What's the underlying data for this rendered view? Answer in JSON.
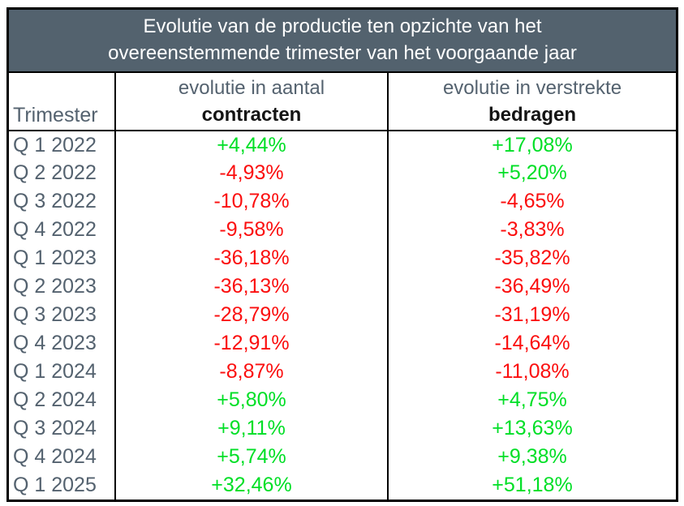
{
  "title": {
    "line1": "Evolutie van de productie ten opzichte van het",
    "line2": "overeenstemmende trimester van het voorgaande jaar"
  },
  "header": {
    "trimester_label": "Trimester",
    "contracts_sub": "evolutie in aantal",
    "contracts_main": "contracten",
    "amounts_sub": "evolutie in verstrekte",
    "amounts_main": "bedragen"
  },
  "rows": [
    {
      "quarter": "Q 1 2022",
      "contracts": "+4,44%",
      "contracts_trend": "positive",
      "amounts": "+17,08%",
      "amounts_trend": "positive"
    },
    {
      "quarter": "Q 2 2022",
      "contracts": "-4,93%",
      "contracts_trend": "negative",
      "amounts": "+5,20%",
      "amounts_trend": "positive"
    },
    {
      "quarter": "Q 3 2022",
      "contracts": "-10,78%",
      "contracts_trend": "negative",
      "amounts": "-4,65%",
      "amounts_trend": "negative"
    },
    {
      "quarter": "Q 4 2022",
      "contracts": "-9,58%",
      "contracts_trend": "negative",
      "amounts": "-3,83%",
      "amounts_trend": "negative"
    },
    {
      "quarter": "Q 1 2023",
      "contracts": "-36,18%",
      "contracts_trend": "negative",
      "amounts": "-35,82%",
      "amounts_trend": "negative"
    },
    {
      "quarter": "Q 2 2023",
      "contracts": "-36,13%",
      "contracts_trend": "negative",
      "amounts": "-36,49%",
      "amounts_trend": "negative"
    },
    {
      "quarter": "Q 3 2023",
      "contracts": "-28,79%",
      "contracts_trend": "negative",
      "amounts": "-31,19%",
      "amounts_trend": "negative"
    },
    {
      "quarter": "Q 4 2023",
      "contracts": "-12,91%",
      "contracts_trend": "negative",
      "amounts": "-14,64%",
      "amounts_trend": "negative"
    },
    {
      "quarter": "Q 1 2024",
      "contracts": "-8,87%",
      "contracts_trend": "negative",
      "amounts": "-11,08%",
      "amounts_trend": "negative"
    },
    {
      "quarter": "Q 2 2024",
      "contracts": "+5,80%",
      "contracts_trend": "positive",
      "amounts": "+4,75%",
      "amounts_trend": "positive"
    },
    {
      "quarter": "Q 3 2024",
      "contracts": "+9,11%",
      "contracts_trend": "positive",
      "amounts": "+13,63%",
      "amounts_trend": "positive"
    },
    {
      "quarter": "Q 4 2024",
      "contracts": "+5,74%",
      "contracts_trend": "positive",
      "amounts": "+9,38%",
      "amounts_trend": "positive"
    },
    {
      "quarter": "Q 1 2025",
      "contracts": "+32,46%",
      "contracts_trend": "positive",
      "amounts": "+51,18%",
      "amounts_trend": "positive"
    }
  ],
  "colors": {
    "positive": "#00DF26",
    "negative": "#FB0E0E",
    "header_band_bg": "#53626E",
    "slate_text": "#54626F",
    "border": "#000000"
  },
  "chart_data": {
    "type": "table",
    "title": "Evolutie van de productie ten opzichte van het overeenstemmende trimester van het voorgaande jaar",
    "columns": [
      "Trimester",
      "evolutie in aantal contracten",
      "evolutie in verstrekte bedragen"
    ],
    "categories": [
      "Q 1 2022",
      "Q 2 2022",
      "Q 3 2022",
      "Q 4 2022",
      "Q 1 2023",
      "Q 2 2023",
      "Q 3 2023",
      "Q 4 2023",
      "Q 1 2024",
      "Q 2 2024",
      "Q 3 2024",
      "Q 4 2024",
      "Q 1 2025"
    ],
    "series": [
      {
        "name": "evolutie in aantal contracten",
        "unit": "%",
        "values": [
          4.44,
          -4.93,
          -10.78,
          -9.58,
          -36.18,
          -36.13,
          -28.79,
          -12.91,
          -8.87,
          5.8,
          9.11,
          5.74,
          32.46
        ]
      },
      {
        "name": "evolutie in verstrekte bedragen",
        "unit": "%",
        "values": [
          17.08,
          5.2,
          -4.65,
          -3.83,
          -35.82,
          -36.49,
          -31.19,
          -14.64,
          -11.08,
          4.75,
          13.63,
          9.38,
          51.18
        ]
      }
    ],
    "notes": "positive values rendered green, negative values rendered red; decimal comma notation"
  }
}
